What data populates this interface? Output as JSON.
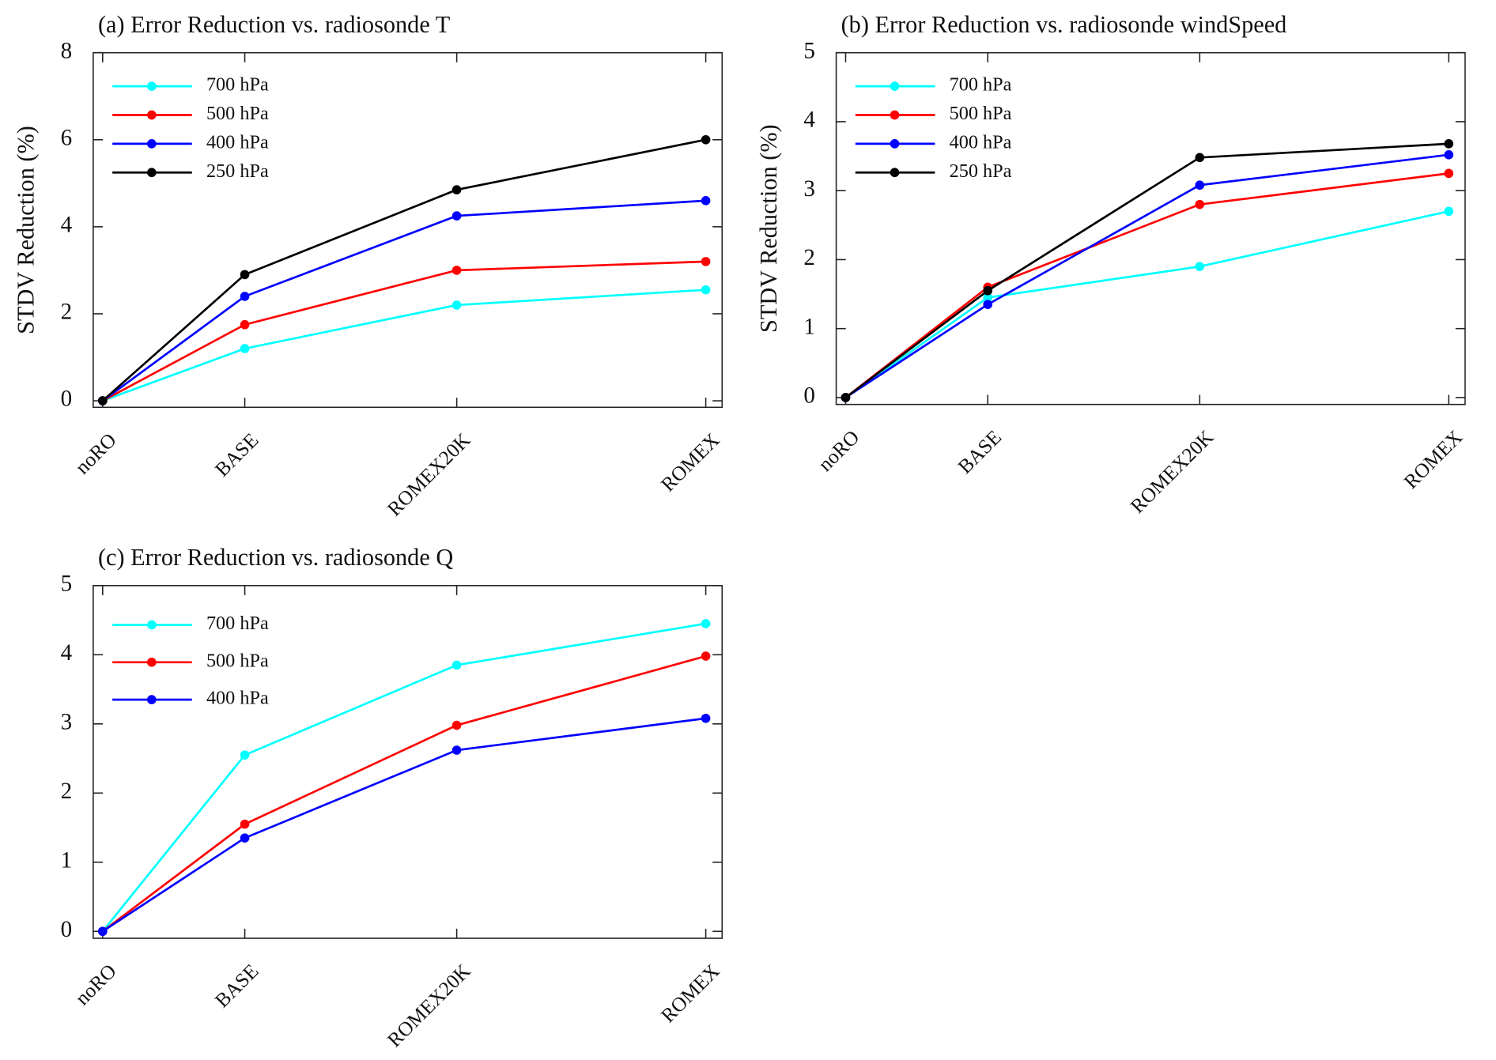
{
  "chart_data": [
    {
      "type": "line",
      "title": "(a)  Error Reduction vs. radiosonde T",
      "ylabel": "STDV Reduction (%)",
      "categories": [
        "noRO",
        "BASE",
        "ROMEX20K",
        "ROMEX"
      ],
      "series": [
        {
          "name": "700 hPa",
          "color": "#00ffff",
          "values": [
            0,
            1.2,
            2.2,
            2.55
          ]
        },
        {
          "name": "500 hPa",
          "color": "#ff0000",
          "values": [
            0,
            1.75,
            3.0,
            3.2
          ]
        },
        {
          "name": "400 hPa",
          "color": "#0000ff",
          "values": [
            0,
            2.4,
            4.25,
            4.6
          ]
        },
        {
          "name": "250 hPa",
          "color": "#000000",
          "values": [
            0,
            2.9,
            4.85,
            6.0
          ]
        }
      ],
      "ylim": [
        -0.15,
        8
      ],
      "yticks": [
        0,
        2,
        4,
        6,
        8
      ]
    },
    {
      "type": "line",
      "title": "(b)  Error Reduction vs. radiosonde windSpeed",
      "ylabel": "STDV Reduction (%)",
      "categories": [
        "noRO",
        "BASE",
        "ROMEX20K",
        "ROMEX"
      ],
      "series": [
        {
          "name": "700 hPa",
          "color": "#00ffff",
          "values": [
            0,
            1.45,
            1.9,
            2.7
          ]
        },
        {
          "name": "500 hPa",
          "color": "#ff0000",
          "values": [
            0,
            1.6,
            2.8,
            3.25
          ]
        },
        {
          "name": "400 hPa",
          "color": "#0000ff",
          "values": [
            0,
            1.35,
            3.08,
            3.52
          ]
        },
        {
          "name": "250 hPa",
          "color": "#000000",
          "values": [
            0,
            1.55,
            3.48,
            3.68
          ]
        }
      ],
      "ylim": [
        -0.1,
        5
      ],
      "yticks": [
        0,
        1,
        2,
        3,
        4,
        5
      ]
    },
    {
      "type": "line",
      "title": "(c)  Error Reduction vs. radiosonde Q",
      "categories": [
        "noRO",
        "BASE",
        "ROMEX20K",
        "ROMEX"
      ],
      "series": [
        {
          "name": "700 hPa",
          "color": "#00ffff",
          "values": [
            0,
            2.55,
            3.85,
            4.45
          ]
        },
        {
          "name": "500 hPa",
          "color": "#ff0000",
          "values": [
            0,
            1.55,
            2.98,
            3.98
          ]
        },
        {
          "name": "400 hPa",
          "color": "#0000ff",
          "values": [
            0,
            1.35,
            2.62,
            3.08
          ]
        }
      ],
      "ylim": [
        -0.1,
        5
      ],
      "yticks": [
        0,
        1,
        2,
        3,
        4,
        5
      ]
    }
  ]
}
